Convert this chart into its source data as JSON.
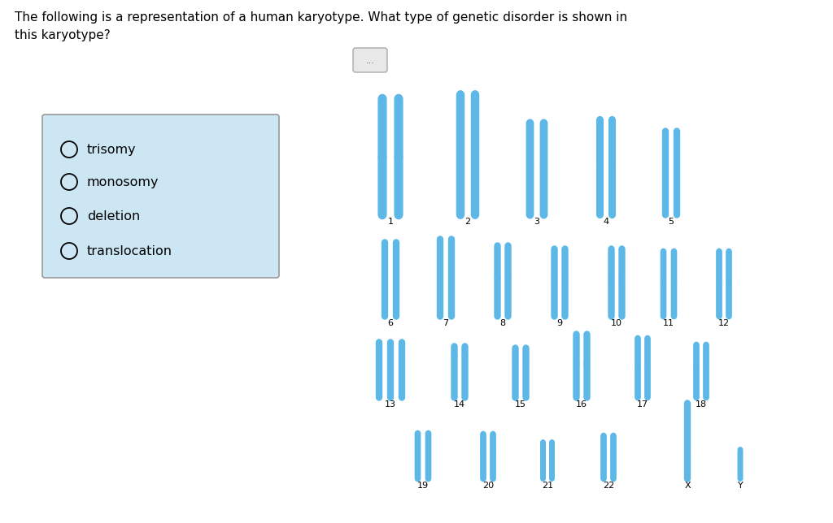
{
  "title": "The following is a representation of a human karyotype. What type of genetic disorder is shown in\nthis karyotype?",
  "choices": [
    "trisomy",
    "monosomy",
    "deletion",
    "translocation"
  ],
  "bg_color": "#ffffff",
  "chr_color": "#5db8e8",
  "box_bg": "#cce6f4",
  "box_border": "#999999",
  "row1_labels": [
    "1",
    "2",
    "3",
    "4",
    "5"
  ],
  "row2_labels": [
    "6",
    "7",
    "8",
    "9",
    "10",
    "11",
    "12"
  ],
  "row3_labels": [
    "13",
    "14",
    "15",
    "16",
    "17",
    "18"
  ],
  "row4_labels": [
    "19",
    "20",
    "21",
    "22",
    "X",
    "Y"
  ]
}
